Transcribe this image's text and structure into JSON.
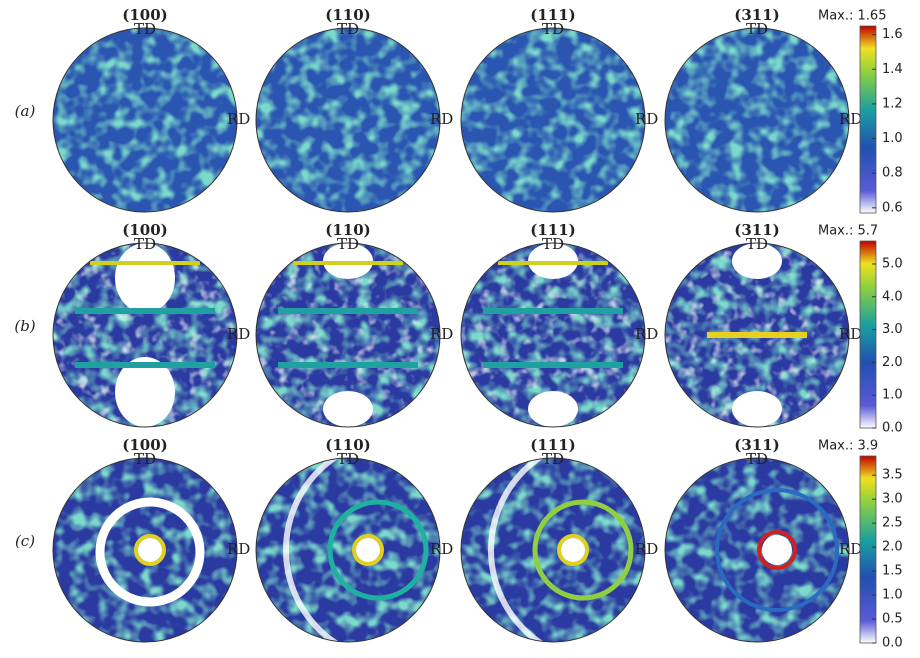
{
  "figure": {
    "rows": [
      {
        "label": "(a)",
        "panels": [
          {
            "title": "(100)",
            "td": "TD",
            "rd": "RD"
          },
          {
            "title": "(110)",
            "td": "TD",
            "rd": "RD"
          },
          {
            "title": "(111)",
            "td": "TD",
            "rd": "RD"
          },
          {
            "title": "(311)",
            "td": "TD",
            "rd": "RD"
          }
        ],
        "colorbar": {
          "max_label": "Max.: 1.65",
          "lim": [
            0.57,
            1.65
          ],
          "ticks": [
            1.6,
            1.4,
            1.2,
            {
              "value": 1.0,
              "label": "1.0"
            },
            0.8,
            0.6
          ]
        }
      },
      {
        "label": "(b)",
        "panels": [
          {
            "title": "(100)",
            "td": "TD",
            "rd": "RD"
          },
          {
            "title": "(110)",
            "td": "TD",
            "rd": "RD"
          },
          {
            "title": "(111)",
            "td": "TD",
            "rd": "RD"
          },
          {
            "title": "(311)",
            "td": "TD",
            "rd": "RD"
          }
        ],
        "colorbar": {
          "max_label": "Max.: 5.7",
          "lim": [
            0,
            5.7
          ],
          "ticks": [
            {
              "value": 5.0,
              "label": "5.0"
            },
            {
              "value": 4.0,
              "label": "4.0"
            },
            {
              "value": 3.0,
              "label": "3.0"
            },
            {
              "value": 2.0,
              "label": "2.0"
            },
            {
              "value": 1.0,
              "label": "1.0"
            },
            {
              "value": 0.0,
              "label": "0.0"
            }
          ]
        }
      },
      {
        "label": "(c)",
        "panels": [
          {
            "title": "(100)",
            "td": "TD",
            "rd": "RD"
          },
          {
            "title": "(110)",
            "td": "TD",
            "rd": "RD"
          },
          {
            "title": "(111)",
            "td": "TD",
            "rd": "RD"
          },
          {
            "title": "(311)",
            "td": "TD",
            "rd": "RD"
          }
        ],
        "colorbar": {
          "max_label": "Max.: 3.9",
          "lim": [
            0,
            3.9
          ],
          "ticks": [
            3.5,
            {
              "value": 3.0,
              "label": "3.0"
            },
            2.5,
            {
              "value": 2.0,
              "label": "2.0"
            },
            1.5,
            {
              "value": 1.0,
              "label": "1.0"
            },
            0.5,
            {
              "value": 0.0,
              "label": "0.0"
            }
          ]
        }
      }
    ]
  }
}
